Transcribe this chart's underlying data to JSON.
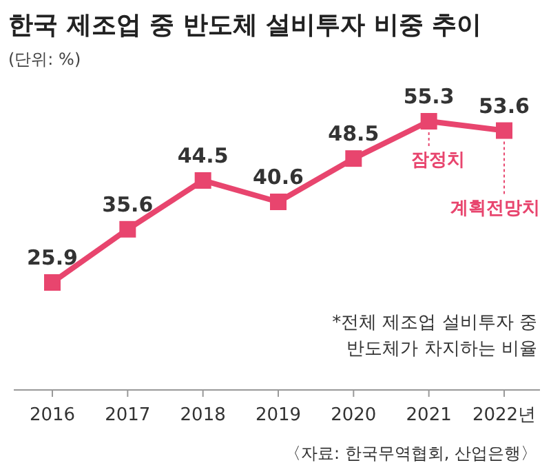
{
  "chart_data": {
    "type": "line",
    "title": "한국 제조업 중 반도체 설비투자 비중 추이",
    "subtitle": "(단위: %)",
    "categories": [
      "2016",
      "2017",
      "2018",
      "2019",
      "2020",
      "2021",
      "2022년"
    ],
    "series": [
      {
        "color": "#e8456e",
        "values": [
          25.9,
          35.6,
          44.5,
          40.6,
          48.5,
          55.3,
          53.6
        ]
      }
    ],
    "data_labels": true,
    "marker": "square",
    "line_style": "solid",
    "annotations": [
      {
        "text": "잠정치",
        "x": "2021",
        "y": 55.3
      },
      {
        "text": "계획전망치",
        "x": "2022년",
        "y": 53.6
      },
      "*전체 제조업 설비투자 중\n반도체가 차지하는 비율",
      "〈자료: 한국무역협회, 산업은행〉"
    ]
  }
}
